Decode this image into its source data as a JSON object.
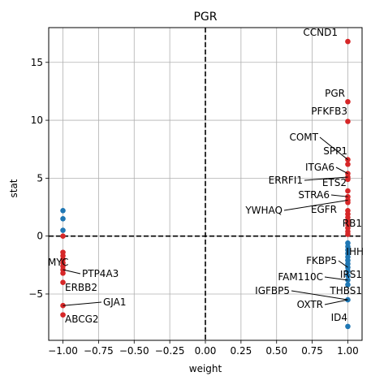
{
  "chart_data": {
    "type": "scatter",
    "title": "PGR",
    "xlabel": "weight",
    "ylabel": "stat",
    "xlim": [
      -1.1,
      1.1
    ],
    "ylim": [
      -9,
      18
    ],
    "xticks": [
      -1.0,
      -0.75,
      -0.5,
      -0.25,
      0.0,
      0.25,
      0.5,
      0.75,
      1.0
    ],
    "xtick_labels": [
      "−1.00",
      "−0.75",
      "−0.50",
      "−0.25",
      "0.00",
      "0.25",
      "0.50",
      "0.75",
      "1.00"
    ],
    "yticks": [
      -5,
      0,
      5,
      10,
      15
    ],
    "ytick_labels": [
      "−5",
      "0",
      "5",
      "10",
      "15"
    ],
    "grid": true,
    "reference_lines": {
      "x": 0,
      "y": 0,
      "style": "dashed",
      "color": "#000000"
    },
    "colors": {
      "positive": "#d62728",
      "negative": "#1f77b4"
    },
    "points": [
      {
        "x": -1.0,
        "y": 2.2,
        "c": "negative"
      },
      {
        "x": -1.0,
        "y": 1.5,
        "c": "negative"
      },
      {
        "x": -1.0,
        "y": 0.5,
        "c": "negative"
      },
      {
        "x": -1.0,
        "y": 0.0,
        "c": "positive"
      },
      {
        "x": -1.0,
        "y": -1.4,
        "c": "positive"
      },
      {
        "x": -1.0,
        "y": -1.7,
        "c": "positive"
      },
      {
        "x": -1.0,
        "y": -2.0,
        "c": "positive"
      },
      {
        "x": -1.0,
        "y": -2.3,
        "c": "positive"
      },
      {
        "x": -1.0,
        "y": -2.6,
        "c": "positive"
      },
      {
        "x": -1.0,
        "y": -2.9,
        "c": "positive"
      },
      {
        "x": -1.0,
        "y": -3.2,
        "c": "positive"
      },
      {
        "x": -1.0,
        "y": -4.0,
        "c": "positive"
      },
      {
        "x": -1.0,
        "y": -6.0,
        "c": "positive"
      },
      {
        "x": -1.0,
        "y": -6.8,
        "c": "positive"
      },
      {
        "x": 1.0,
        "y": 16.8,
        "c": "positive"
      },
      {
        "x": 1.0,
        "y": 11.6,
        "c": "positive"
      },
      {
        "x": 1.0,
        "y": 9.9,
        "c": "positive"
      },
      {
        "x": 1.0,
        "y": 6.6,
        "c": "positive"
      },
      {
        "x": 1.0,
        "y": 6.2,
        "c": "positive"
      },
      {
        "x": 1.0,
        "y": 5.4,
        "c": "positive"
      },
      {
        "x": 1.0,
        "y": 5.1,
        "c": "positive"
      },
      {
        "x": 1.0,
        "y": 4.9,
        "c": "positive"
      },
      {
        "x": 1.0,
        "y": 3.9,
        "c": "positive"
      },
      {
        "x": 1.0,
        "y": 3.4,
        "c": "positive"
      },
      {
        "x": 1.0,
        "y": 3.1,
        "c": "positive"
      },
      {
        "x": 1.0,
        "y": 2.9,
        "c": "positive"
      },
      {
        "x": 1.0,
        "y": 2.2,
        "c": "positive"
      },
      {
        "x": 1.0,
        "y": 1.9,
        "c": "positive"
      },
      {
        "x": 1.0,
        "y": 1.6,
        "c": "positive"
      },
      {
        "x": 1.0,
        "y": 1.3,
        "c": "positive"
      },
      {
        "x": 1.0,
        "y": 1.0,
        "c": "positive"
      },
      {
        "x": 1.0,
        "y": 0.7,
        "c": "positive"
      },
      {
        "x": 1.0,
        "y": 0.4,
        "c": "positive"
      },
      {
        "x": 1.0,
        "y": 0.15,
        "c": "positive"
      },
      {
        "x": 1.0,
        "y": -0.6,
        "c": "negative"
      },
      {
        "x": 1.0,
        "y": -0.9,
        "c": "negative"
      },
      {
        "x": 1.0,
        "y": -1.2,
        "c": "negative"
      },
      {
        "x": 1.0,
        "y": -1.5,
        "c": "negative"
      },
      {
        "x": 1.0,
        "y": -1.8,
        "c": "negative"
      },
      {
        "x": 1.0,
        "y": -2.1,
        "c": "negative"
      },
      {
        "x": 1.0,
        "y": -2.4,
        "c": "negative"
      },
      {
        "x": 1.0,
        "y": -2.7,
        "c": "negative"
      },
      {
        "x": 1.0,
        "y": -3.0,
        "c": "negative"
      },
      {
        "x": 1.0,
        "y": -3.4,
        "c": "negative"
      },
      {
        "x": 1.0,
        "y": -3.8,
        "c": "negative"
      },
      {
        "x": 1.0,
        "y": -4.2,
        "c": "negative"
      },
      {
        "x": 1.0,
        "y": -5.5,
        "c": "negative"
      },
      {
        "x": 1.0,
        "y": -7.8,
        "c": "negative"
      }
    ],
    "annotations": [
      {
        "text": "CCND1",
        "x": 1.0,
        "y": 16.8
      },
      {
        "text": "PGR",
        "x": 1.0,
        "y": 11.6
      },
      {
        "text": "PFKFB3",
        "x": 1.0,
        "y": 9.9
      },
      {
        "text": "COMT",
        "x": 1.0,
        "y": 6.6
      },
      {
        "text": "SPP1",
        "x": 1.0,
        "y": 6.2
      },
      {
        "text": "ITGA6",
        "x": 1.0,
        "y": 5.4
      },
      {
        "text": "ERRFI1",
        "x": 1.0,
        "y": 5.1
      },
      {
        "text": "ETS2",
        "x": 1.0,
        "y": 4.9
      },
      {
        "text": "STRA6",
        "x": 1.0,
        "y": 3.4
      },
      {
        "text": "EGFR",
        "x": 1.0,
        "y": 2.9
      },
      {
        "text": "YWHAQ",
        "x": 1.0,
        "y": 3.1
      },
      {
        "text": "RB1",
        "x": 1.0,
        "y": 0.4
      },
      {
        "text": "IHH",
        "x": 1.0,
        "y": -1.8
      },
      {
        "text": "FKBP5",
        "x": 1.0,
        "y": -2.7
      },
      {
        "text": "IRS1",
        "x": 1.0,
        "y": -3.0
      },
      {
        "text": "FAM110C",
        "x": 1.0,
        "y": -3.8
      },
      {
        "text": "IGFBP5",
        "x": 1.0,
        "y": -5.5
      },
      {
        "text": "THBS1",
        "x": 1.0,
        "y": -4.2
      },
      {
        "text": "OXTR",
        "x": 1.0,
        "y": -5.5
      },
      {
        "text": "ID4",
        "x": 1.0,
        "y": -7.8
      },
      {
        "text": "MYC",
        "x": -1.0,
        "y": -2.3
      },
      {
        "text": "PTP4A3",
        "x": -1.0,
        "y": -2.9
      },
      {
        "text": "ERBB2",
        "x": -1.0,
        "y": -4.0
      },
      {
        "text": "GJA1",
        "x": -1.0,
        "y": -6.0
      },
      {
        "text": "ABCG2",
        "x": -1.0,
        "y": -6.8
      }
    ]
  }
}
